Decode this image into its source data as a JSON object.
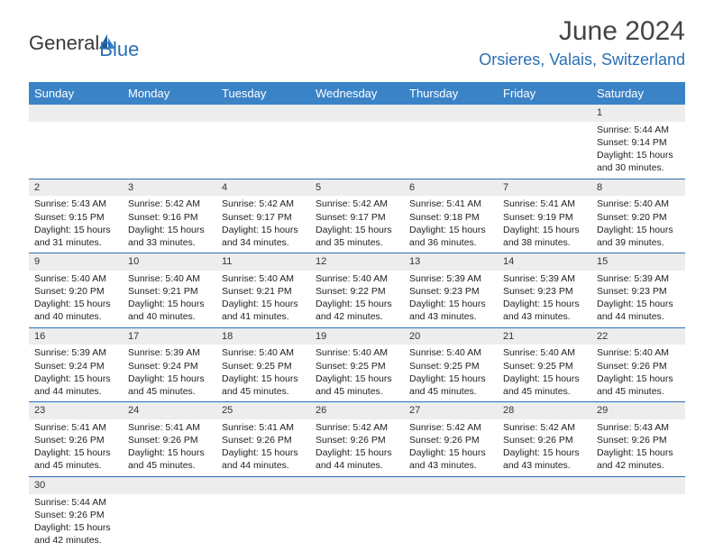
{
  "logo": {
    "text1": "General",
    "text2": "Blue"
  },
  "title": "June 2024",
  "location": "Orsieres, Valais, Switzerland",
  "colors": {
    "header_bar": "#3b83c7",
    "accent": "#2a6fb5",
    "daynum_bg": "#ededed",
    "text": "#222222"
  },
  "day_names": [
    "Sunday",
    "Monday",
    "Tuesday",
    "Wednesday",
    "Thursday",
    "Friday",
    "Saturday"
  ],
  "weeks": [
    [
      null,
      null,
      null,
      null,
      null,
      null,
      {
        "n": "1",
        "sr": "5:44 AM",
        "ss": "9:14 PM",
        "d1": "15 hours",
        "d2": "and 30 minutes."
      }
    ],
    [
      {
        "n": "2",
        "sr": "5:43 AM",
        "ss": "9:15 PM",
        "d1": "15 hours",
        "d2": "and 31 minutes."
      },
      {
        "n": "3",
        "sr": "5:42 AM",
        "ss": "9:16 PM",
        "d1": "15 hours",
        "d2": "and 33 minutes."
      },
      {
        "n": "4",
        "sr": "5:42 AM",
        "ss": "9:17 PM",
        "d1": "15 hours",
        "d2": "and 34 minutes."
      },
      {
        "n": "5",
        "sr": "5:42 AM",
        "ss": "9:17 PM",
        "d1": "15 hours",
        "d2": "and 35 minutes."
      },
      {
        "n": "6",
        "sr": "5:41 AM",
        "ss": "9:18 PM",
        "d1": "15 hours",
        "d2": "and 36 minutes."
      },
      {
        "n": "7",
        "sr": "5:41 AM",
        "ss": "9:19 PM",
        "d1": "15 hours",
        "d2": "and 38 minutes."
      },
      {
        "n": "8",
        "sr": "5:40 AM",
        "ss": "9:20 PM",
        "d1": "15 hours",
        "d2": "and 39 minutes."
      }
    ],
    [
      {
        "n": "9",
        "sr": "5:40 AM",
        "ss": "9:20 PM",
        "d1": "15 hours",
        "d2": "and 40 minutes."
      },
      {
        "n": "10",
        "sr": "5:40 AM",
        "ss": "9:21 PM",
        "d1": "15 hours",
        "d2": "and 40 minutes."
      },
      {
        "n": "11",
        "sr": "5:40 AM",
        "ss": "9:21 PM",
        "d1": "15 hours",
        "d2": "and 41 minutes."
      },
      {
        "n": "12",
        "sr": "5:40 AM",
        "ss": "9:22 PM",
        "d1": "15 hours",
        "d2": "and 42 minutes."
      },
      {
        "n": "13",
        "sr": "5:39 AM",
        "ss": "9:23 PM",
        "d1": "15 hours",
        "d2": "and 43 minutes."
      },
      {
        "n": "14",
        "sr": "5:39 AM",
        "ss": "9:23 PM",
        "d1": "15 hours",
        "d2": "and 43 minutes."
      },
      {
        "n": "15",
        "sr": "5:39 AM",
        "ss": "9:23 PM",
        "d1": "15 hours",
        "d2": "and 44 minutes."
      }
    ],
    [
      {
        "n": "16",
        "sr": "5:39 AM",
        "ss": "9:24 PM",
        "d1": "15 hours",
        "d2": "and 44 minutes."
      },
      {
        "n": "17",
        "sr": "5:39 AM",
        "ss": "9:24 PM",
        "d1": "15 hours",
        "d2": "and 45 minutes."
      },
      {
        "n": "18",
        "sr": "5:40 AM",
        "ss": "9:25 PM",
        "d1": "15 hours",
        "d2": "and 45 minutes."
      },
      {
        "n": "19",
        "sr": "5:40 AM",
        "ss": "9:25 PM",
        "d1": "15 hours",
        "d2": "and 45 minutes."
      },
      {
        "n": "20",
        "sr": "5:40 AM",
        "ss": "9:25 PM",
        "d1": "15 hours",
        "d2": "and 45 minutes."
      },
      {
        "n": "21",
        "sr": "5:40 AM",
        "ss": "9:25 PM",
        "d1": "15 hours",
        "d2": "and 45 minutes."
      },
      {
        "n": "22",
        "sr": "5:40 AM",
        "ss": "9:26 PM",
        "d1": "15 hours",
        "d2": "and 45 minutes."
      }
    ],
    [
      {
        "n": "23",
        "sr": "5:41 AM",
        "ss": "9:26 PM",
        "d1": "15 hours",
        "d2": "and 45 minutes."
      },
      {
        "n": "24",
        "sr": "5:41 AM",
        "ss": "9:26 PM",
        "d1": "15 hours",
        "d2": "and 45 minutes."
      },
      {
        "n": "25",
        "sr": "5:41 AM",
        "ss": "9:26 PM",
        "d1": "15 hours",
        "d2": "and 44 minutes."
      },
      {
        "n": "26",
        "sr": "5:42 AM",
        "ss": "9:26 PM",
        "d1": "15 hours",
        "d2": "and 44 minutes."
      },
      {
        "n": "27",
        "sr": "5:42 AM",
        "ss": "9:26 PM",
        "d1": "15 hours",
        "d2": "and 43 minutes."
      },
      {
        "n": "28",
        "sr": "5:42 AM",
        "ss": "9:26 PM",
        "d1": "15 hours",
        "d2": "and 43 minutes."
      },
      {
        "n": "29",
        "sr": "5:43 AM",
        "ss": "9:26 PM",
        "d1": "15 hours",
        "d2": "and 42 minutes."
      }
    ],
    [
      {
        "n": "30",
        "sr": "5:44 AM",
        "ss": "9:26 PM",
        "d1": "15 hours",
        "d2": "and 42 minutes."
      },
      null,
      null,
      null,
      null,
      null,
      null
    ]
  ],
  "labels": {
    "sunrise": "Sunrise:",
    "sunset": "Sunset:",
    "daylight": "Daylight:"
  }
}
